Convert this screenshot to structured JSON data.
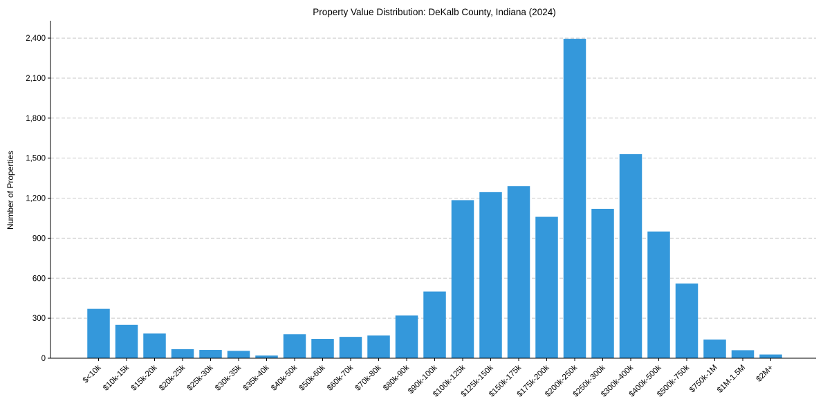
{
  "chart_data": {
    "type": "bar",
    "title": "Property Value Distribution: DeKalb County, Indiana (2024)",
    "xlabel": "",
    "ylabel": "Number of Properties",
    "ylim": [
      0,
      2530
    ],
    "yticks": [
      0,
      300,
      600,
      900,
      1200,
      1500,
      1800,
      2100,
      2400
    ],
    "ytick_labels": [
      "0",
      "300",
      "600",
      "900",
      "1,200",
      "1,500",
      "1,800",
      "2,100",
      "2,400"
    ],
    "grid": "horizontal-dashed",
    "bar_color": "#3498db",
    "categories": [
      "$<10k",
      "$10k-15k",
      "$15k-20k",
      "$20k-25k",
      "$25k-30k",
      "$30k-35k",
      "$35k-40k",
      "$40k-50k",
      "$50k-60k",
      "$60k-70k",
      "$70k-80k",
      "$80k-90k",
      "$90k-100k",
      "$100k-125k",
      "$125k-150k",
      "$150k-175k",
      "$175k-200k",
      "$200k-250k",
      "$250k-300k",
      "$300k-400k",
      "$400k-500k",
      "$500k-750k",
      "$750k-1M",
      "$1M-1.5M",
      "$2M+"
    ],
    "values": [
      370,
      250,
      185,
      68,
      62,
      55,
      20,
      180,
      145,
      160,
      170,
      320,
      500,
      1185,
      1245,
      1290,
      1060,
      2395,
      1120,
      1530,
      950,
      560,
      140,
      60,
      28
    ]
  }
}
